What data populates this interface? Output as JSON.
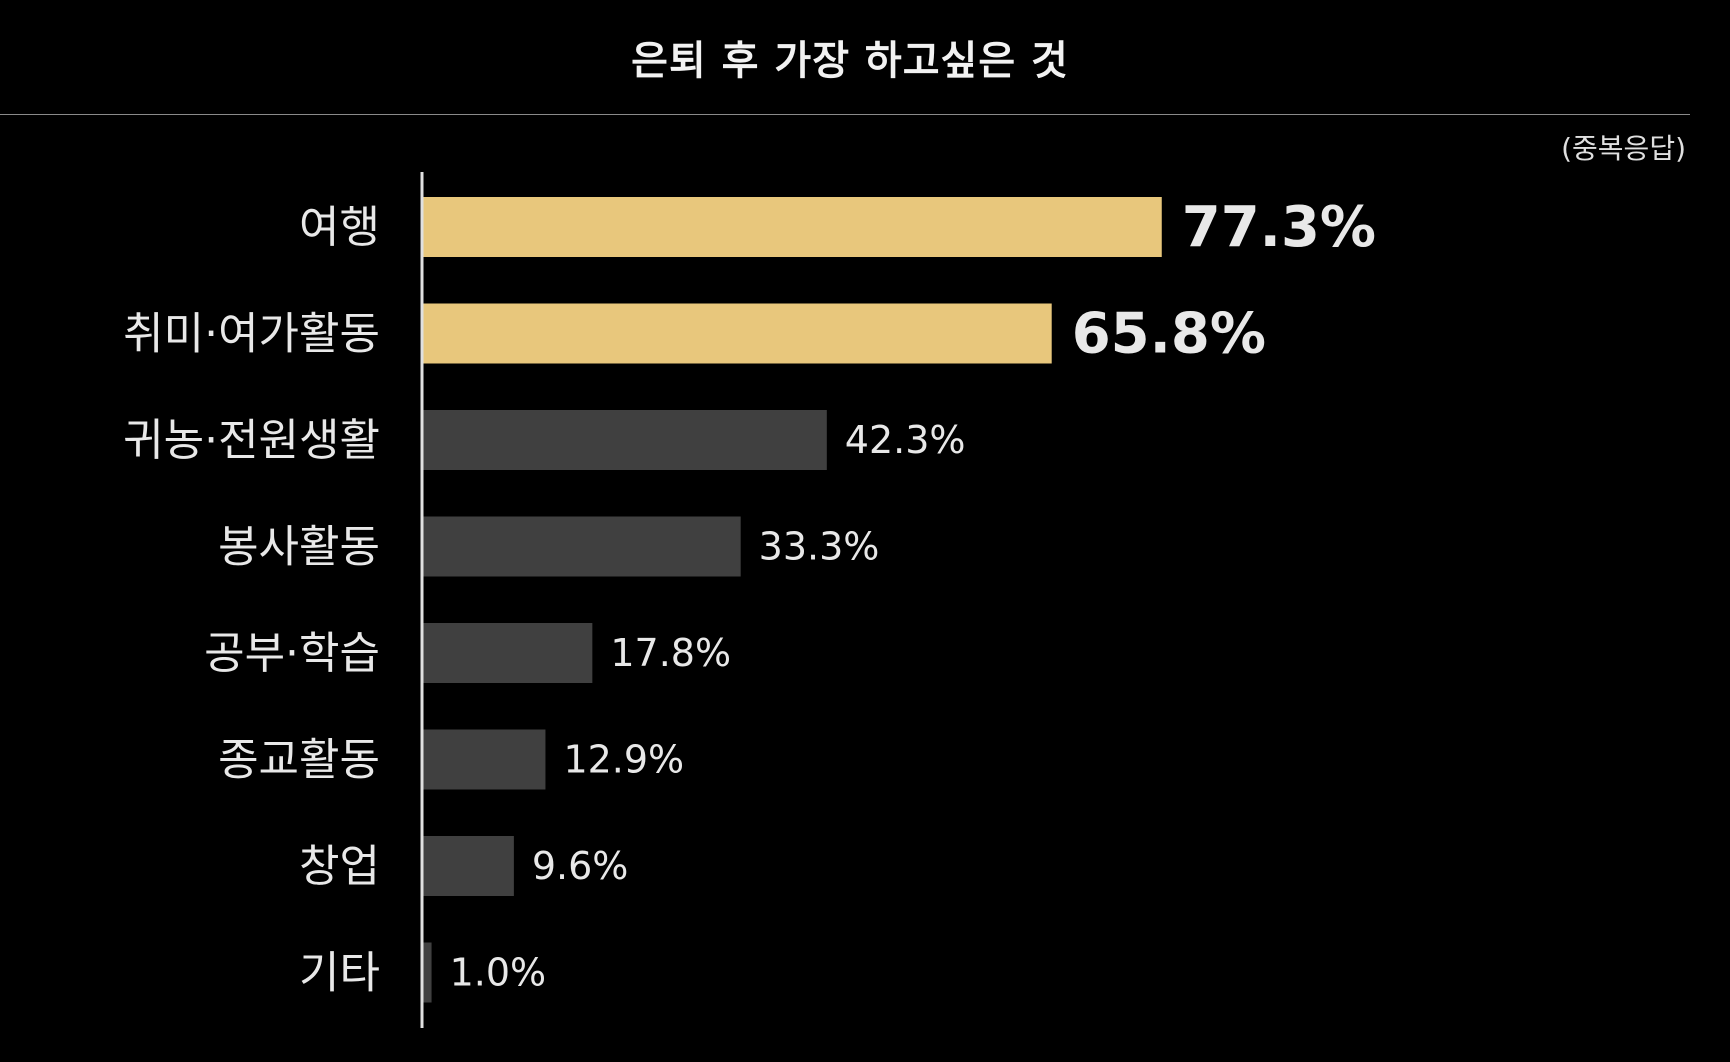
{
  "chart_data": {
    "type": "bar",
    "orientation": "horizontal",
    "title": "은퇴 후 가장 하고싶은 것",
    "note": "(중복응답)",
    "categories": [
      "여행",
      "취미·여가활동",
      "귀농·전원생활",
      "봉사활동",
      "공부·학습",
      "종교활동",
      "창업",
      "기타"
    ],
    "values": [
      77.3,
      65.8,
      42.3,
      33.3,
      17.8,
      12.9,
      9.6,
      1.0
    ],
    "value_labels": [
      "77.3%",
      "65.8%",
      "42.3%",
      "33.3%",
      "17.8%",
      "12.9%",
      "9.6%",
      "1.0%"
    ],
    "highlighted": [
      true,
      true,
      false,
      false,
      false,
      false,
      false,
      false
    ],
    "xlim": [
      0,
      100
    ],
    "grid": false,
    "legend": "none",
    "colors": {
      "background": "#000000",
      "highlight_bar": "#e8c77c",
      "normal_bar": "#404040",
      "text": "#e8e8e8",
      "axis": "#e0e0e0"
    }
  }
}
